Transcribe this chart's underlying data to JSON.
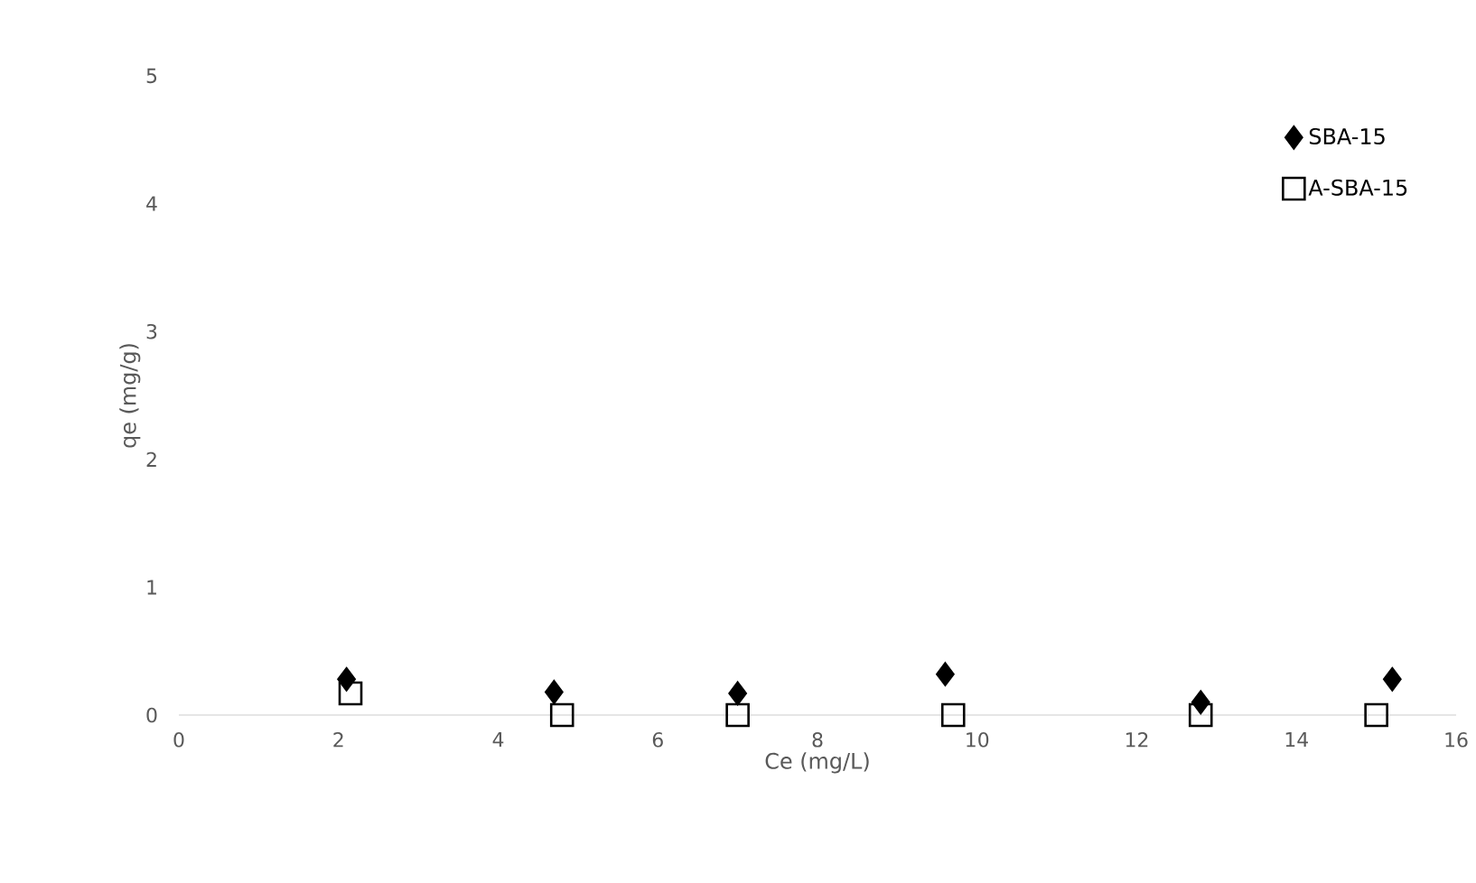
{
  "chart_data": {
    "type": "scatter",
    "xlabel": "Ce (mg/L)",
    "ylabel": "qe (mg/g)",
    "xlim": [
      0,
      16
    ],
    "xticks": [
      0,
      2,
      4,
      6,
      8,
      10,
      12,
      14,
      16
    ],
    "ylim": [
      0,
      5
    ],
    "yticks": [
      0,
      1,
      2,
      3,
      4,
      5
    ],
    "grid": false,
    "legend": "top right",
    "series": [
      {
        "name": "SBA-15",
        "color": "#000000",
        "marker": "diamond",
        "x": [
          2.1,
          4.7,
          7.0,
          9.6,
          12.8,
          15.2
        ],
        "values": [
          0.28,
          0.18,
          0.17,
          0.32,
          0.1,
          0.28
        ]
      },
      {
        "name": "A-SBA-15",
        "color": "#000000",
        "marker": "square",
        "x": [
          2.15,
          4.8,
          7.0,
          9.7,
          12.8,
          15.0
        ],
        "values": [
          0.17,
          0.0,
          0.0,
          0.0,
          0.0,
          0.0
        ]
      }
    ]
  }
}
